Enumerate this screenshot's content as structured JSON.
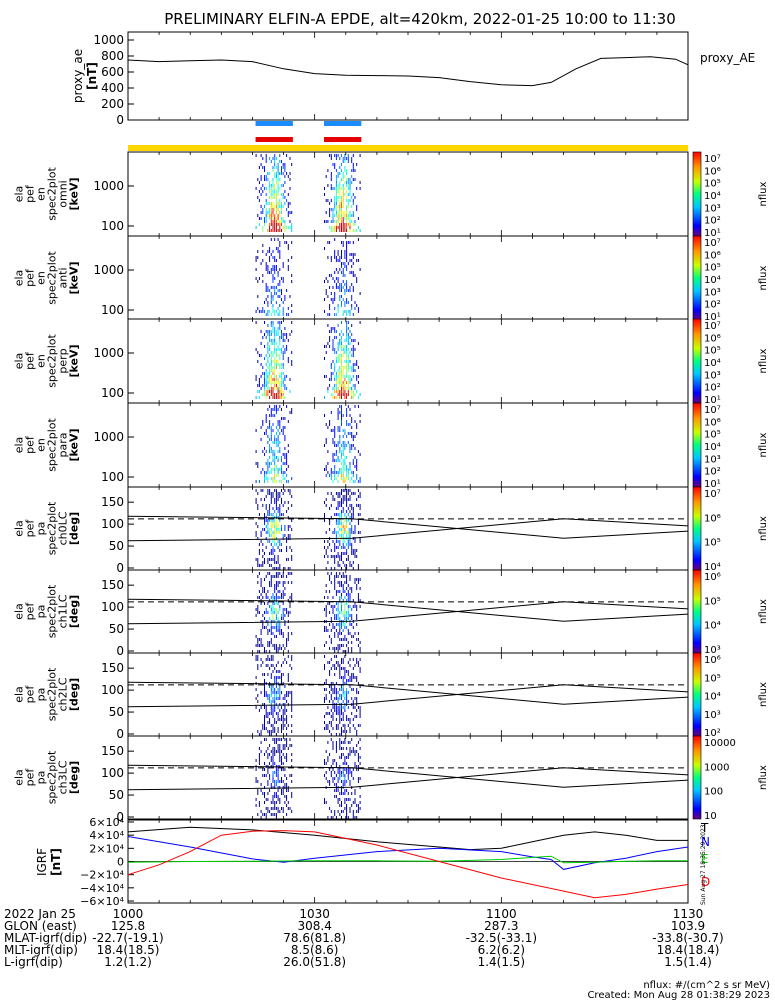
{
  "title": "PRELIMINARY ELFIN-A EPDE, alt=420km, 2022-01-25 10:00 to 11:30",
  "chart_data": {
    "type": "multi-panel",
    "time_range": [
      "10:00",
      "11:30"
    ],
    "x_ticks": [
      "1000",
      "1030",
      "1100",
      "1130"
    ],
    "science_zones": [
      [
        20.5,
        26.5
      ],
      [
        31.5,
        37.5
      ]
    ],
    "colors": {
      "zone_blue": "#1a8cff",
      "zone_red": "#e60000",
      "mode_bar": "#ffd700"
    },
    "proxy_ae": {
      "ylabel": "proxy_ae",
      "yunits": "[nT]",
      "legend": "proxy_AE",
      "yticks": [
        "1000",
        "800",
        "600",
        "400",
        "200",
        "0"
      ],
      "ylim": [
        0,
        1100
      ],
      "t": [
        0,
        5,
        10,
        15,
        20,
        25,
        30,
        35,
        40,
        45,
        50,
        55,
        60,
        65,
        68,
        72,
        76,
        80,
        84,
        88,
        90
      ],
      "values": [
        750,
        730,
        740,
        750,
        730,
        640,
        580,
        560,
        555,
        550,
        530,
        480,
        440,
        430,
        470,
        640,
        770,
        780,
        790,
        760,
        690
      ]
    },
    "spectrograms": [
      {
        "labels": [
          "ela",
          "pef",
          "en",
          "spec2plot",
          "omni"
        ],
        "units": "[keV]",
        "yticks": [
          "1000",
          "100"
        ],
        "cbar_ticks": [
          "10⁷",
          "10⁶",
          "10⁵",
          "10⁴",
          "10³",
          "10²",
          "10¹"
        ],
        "cbar_label": "nflux"
      },
      {
        "labels": [
          "ela",
          "pef",
          "en",
          "spec2plot",
          "anti"
        ],
        "units": "[keV]",
        "yticks": [
          "1000",
          "100"
        ],
        "cbar_ticks": [
          "10⁷",
          "10⁶",
          "10⁵",
          "10⁴",
          "10³",
          "10²",
          "10¹"
        ],
        "cbar_label": "nflux"
      },
      {
        "labels": [
          "ela",
          "pef",
          "en",
          "spec2plot",
          "perp"
        ],
        "units": "[keV]",
        "yticks": [
          "1000",
          "100"
        ],
        "cbar_ticks": [
          "10⁷",
          "10⁶",
          "10⁵",
          "10⁴",
          "10³",
          "10²",
          "10¹"
        ],
        "cbar_label": "nflux"
      },
      {
        "labels": [
          "ela",
          "pef",
          "en",
          "spec2plot",
          "para"
        ],
        "units": "[keV]",
        "yticks": [
          "1000",
          "100"
        ],
        "cbar_ticks": [
          "10⁷",
          "10⁶",
          "10⁵",
          "10⁴",
          "10³",
          "10²",
          "10¹"
        ],
        "cbar_label": "nflux"
      }
    ],
    "pitch_angle_panels": [
      {
        "labels": [
          "ela",
          "pef",
          "pa",
          "spec2plot",
          "ch0LC"
        ],
        "units": "[deg]",
        "yticks": [
          "150",
          "100",
          "50",
          "0"
        ],
        "cbar_ticks": [
          "10⁷",
          "10⁶",
          "10⁵",
          "10⁴"
        ],
        "cbar_label": "nflux"
      },
      {
        "labels": [
          "ela",
          "pef",
          "pa",
          "spec2plot",
          "ch1LC"
        ],
        "units": "[deg]",
        "yticks": [
          "150",
          "100",
          "50",
          "0"
        ],
        "cbar_ticks": [
          "10⁶",
          "10⁵",
          "10⁴",
          "10³"
        ],
        "cbar_label": "nflux"
      },
      {
        "labels": [
          "ela",
          "pef",
          "pa",
          "spec2plot",
          "ch2LC"
        ],
        "units": "[deg]",
        "yticks": [
          "150",
          "100",
          "50",
          "0"
        ],
        "cbar_ticks": [
          "10⁶",
          "10⁵",
          "10⁴",
          "10³",
          "10²"
        ],
        "cbar_label": "nflux"
      },
      {
        "labels": [
          "ela",
          "pef",
          "pa",
          "spec2plot",
          "ch3LC"
        ],
        "units": "[deg]",
        "yticks": [
          "150",
          "100",
          "50",
          "0"
        ],
        "cbar_ticks": [
          "10000",
          "1000",
          "100",
          "10"
        ],
        "cbar_label": "nflux"
      }
    ],
    "losscone_curve": {
      "t": [
        0,
        36,
        70,
        90
      ],
      "deg": [
        62,
        68,
        112,
        96
      ]
    },
    "antilosscone_curve": {
      "t": [
        0,
        36,
        70,
        90
      ],
      "deg": [
        118,
        112,
        68,
        84
      ]
    },
    "dashed_level_deg": 112,
    "igrf": {
      "ylabel": "IGRF",
      "yunits": "[nT]",
      "yticks": [
        "6×10⁴",
        "4×10⁴",
        "2×10⁴",
        "0",
        "−2×10⁴",
        "−4×10⁴",
        "−6×10⁴"
      ],
      "ylim": [
        -60000,
        60000
      ],
      "series": [
        {
          "name": "T",
          "color": "#000000",
          "t": [
            0,
            10,
            20,
            30,
            40,
            50,
            55,
            60,
            65,
            70,
            75,
            80,
            85,
            90
          ],
          "values": [
            45000,
            52000,
            48000,
            40000,
            30000,
            22000,
            18000,
            20000,
            30000,
            40000,
            45000,
            40000,
            32000,
            32000
          ]
        },
        {
          "name": "N",
          "color": "#0000ff",
          "t": [
            0,
            10,
            20,
            25,
            30,
            40,
            50,
            60,
            65,
            68,
            70,
            75,
            80,
            85,
            90
          ],
          "values": [
            38000,
            22000,
            4000,
            -1000,
            5000,
            15000,
            20000,
            15000,
            7000,
            3000,
            -12000,
            -2000,
            5000,
            15000,
            22000
          ]
        },
        {
          "name": "E",
          "color": "#00cc00",
          "t": [
            0,
            10,
            20,
            30,
            40,
            50,
            60,
            68,
            70,
            75,
            80,
            85,
            90
          ],
          "values": [
            -1000,
            0,
            500,
            1000,
            1000,
            500,
            3000,
            8000,
            -2000,
            -1000,
            500,
            1000,
            1000
          ]
        },
        {
          "name": "D",
          "color": "#ff0000",
          "t": [
            0,
            5,
            10,
            15,
            20,
            25,
            30,
            40,
            50,
            60,
            70,
            75,
            80,
            85,
            90
          ],
          "values": [
            -20000,
            -5000,
            15000,
            40000,
            46000,
            47000,
            45000,
            25000,
            0,
            -25000,
            -45000,
            -55000,
            -50000,
            -42000,
            -35000
          ]
        }
      ]
    }
  },
  "ephemeris": {
    "rows": [
      {
        "label": "2022 Jan 25",
        "values": [
          "1000",
          "1030",
          "1100",
          "1130"
        ]
      },
      {
        "label": "GLON (east)",
        "values": [
          "125.8",
          "308.4",
          "287.3",
          "103.9"
        ]
      },
      {
        "label": "MLAT-igrf(dip)",
        "values": [
          "-22.7(-19.1)",
          "78.6(81.8)",
          "-32.5(-33.1)",
          "-33.8(-30.7)"
        ]
      },
      {
        "label": "MLT-igrf(dip)",
        "values": [
          "18.4(18.5)",
          "8.5(8.6)",
          "6.2(6.2)",
          "18.4(18.4)"
        ]
      },
      {
        "label": "L-igrf(dip)",
        "values": [
          "1.2(1.2)",
          "26.0(51.8)",
          "1.4(1.5)",
          "1.5(1.4)"
        ]
      }
    ]
  },
  "footer": {
    "units_note": "nflux: #/(cm^2 s sr MeV)",
    "created": "Created: Mon Aug 28 01:38:29 2023",
    "side_stamp": "Sun Aug 27 18:35:29 2023"
  }
}
